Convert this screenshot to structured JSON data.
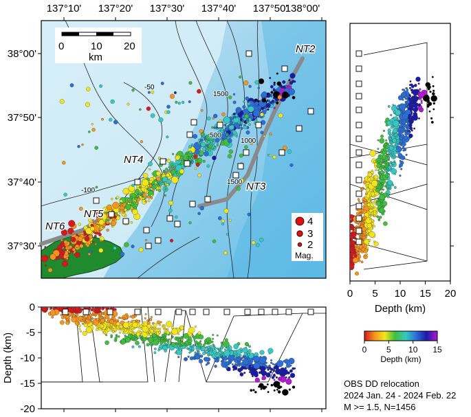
{
  "map": {
    "lon_ticks": [
      "137°10'",
      "137°20'",
      "137°30'",
      "137°40'",
      "137°50'",
      "138°00'"
    ],
    "lat_ticks": [
      "38°00'",
      "37°50'",
      "37°40'",
      "37°30'"
    ],
    "scalebar": {
      "ticks": [
        "0",
        "10",
        "20"
      ],
      "unit": "km"
    },
    "fault_labels": [
      "NT2",
      "NT3",
      "NT4",
      "NT5",
      "NT6"
    ],
    "contour_labels": [
      "-50",
      "-100",
      "500",
      "1000",
      "1500",
      "1500"
    ],
    "magnitude_legend": {
      "entries": [
        "4",
        "3",
        "2"
      ],
      "title": "Mag."
    }
  },
  "right_section": {
    "xlabel": "Depth (km)",
    "ticks": [
      "0",
      "5",
      "10",
      "15",
      "20"
    ]
  },
  "bottom_section": {
    "ylabel": "Depth (km)",
    "ticks": [
      "0",
      "-5",
      "-10",
      "-15",
      "-20"
    ]
  },
  "colorbar": {
    "ticks": [
      "0",
      "5",
      "10",
      "15"
    ],
    "label": "Depth (km)",
    "colors": [
      "#d7191c",
      "#f7941d",
      "#f2e61b",
      "#3fbf3f",
      "#35c9c4",
      "#2b6fd6",
      "#1a1aa8",
      "#b21ad6"
    ]
  },
  "caption": {
    "line1": "OBS DD relocation",
    "line2": "2024 Jan. 24 - 2024 Feb. 22",
    "line3": "M >= 1.5, N=1456"
  }
}
